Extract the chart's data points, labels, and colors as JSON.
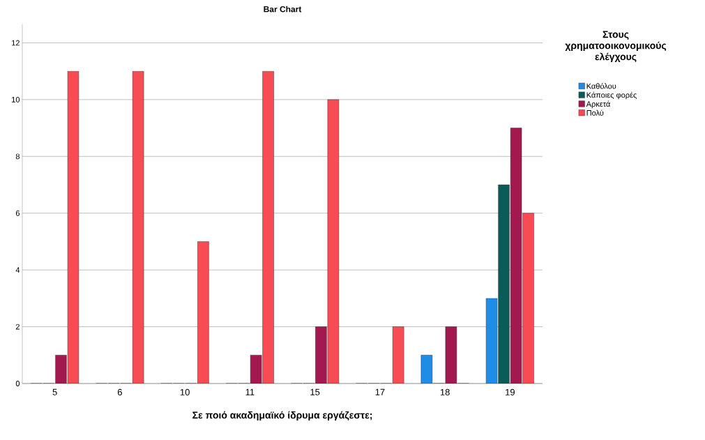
{
  "chart_data": {
    "type": "bar",
    "title": "Bar Chart",
    "xlabel": "Σε ποιό ακαδημαϊκό ίδρυμα εργάζεστε;",
    "legend_title": "Στους χρηματοοικονομικούς ελέγχους",
    "categories": [
      "5",
      "6",
      "10",
      "11",
      "15",
      "17",
      "18",
      "19"
    ],
    "series": [
      {
        "name": "Καθόλου",
        "color": "#1f8ce6",
        "values": [
          0,
          0,
          0,
          0,
          0,
          0,
          1,
          3
        ]
      },
      {
        "name": "Κάποιες φορές",
        "color": "#0b5c59",
        "values": [
          0,
          0,
          0,
          0,
          0,
          0,
          0,
          7
        ]
      },
      {
        "name": "Αρκετά",
        "color": "#a3194f",
        "values": [
          1,
          0,
          0,
          1,
          2,
          0,
          2,
          9
        ]
      },
      {
        "name": "Πολύ",
        "color": "#f84c55",
        "values": [
          11,
          11,
          5,
          11,
          10,
          2,
          0,
          6
        ]
      }
    ],
    "ylim": [
      0,
      12.65
    ],
    "yticks": [
      0,
      2,
      4,
      6,
      8,
      10,
      12
    ],
    "grid": "y",
    "legend": "right"
  }
}
